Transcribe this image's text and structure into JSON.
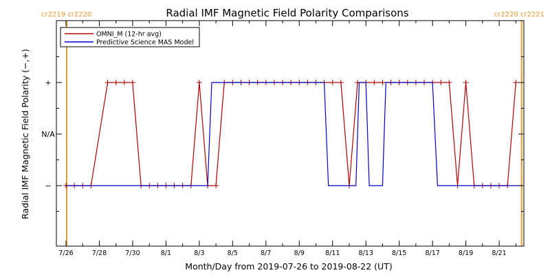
{
  "chart_data": {
    "type": "line",
    "title": "Radial IMF Magnetic Field Polarity Comparisons",
    "xlabel": "Month/Day from 2019-07-26 to 2019-08-22 (UT)",
    "ylabel": "Radial IMF Magnetic Field Polarity (−,+)",
    "y_categories": [
      "−",
      "N/A",
      "+"
    ],
    "ylim": [
      -2,
      2
    ],
    "xlim_days_since_0726": [
      0,
      27.4
    ],
    "x_ticks": [
      {
        "label": "7/26",
        "day": 0
      },
      {
        "label": "7/28",
        "day": 2
      },
      {
        "label": "7/30",
        "day": 4
      },
      {
        "label": "8/1",
        "day": 6
      },
      {
        "label": "8/3",
        "day": 8
      },
      {
        "label": "8/5",
        "day": 10
      },
      {
        "label": "8/7",
        "day": 12
      },
      {
        "label": "8/9",
        "day": 14
      },
      {
        "label": "8/11",
        "day": 16
      },
      {
        "label": "8/13",
        "day": 18
      },
      {
        "label": "8/15",
        "day": 20
      },
      {
        "label": "8/17",
        "day": 22
      },
      {
        "label": "8/19",
        "day": 24
      },
      {
        "label": "8/21",
        "day": 26
      }
    ],
    "carrington_markers": [
      {
        "label": "cr2219 cr2220",
        "day": 0.04,
        "side": "left"
      },
      {
        "label": "cr2220 cr2221",
        "day": 27.35,
        "side": "right"
      }
    ],
    "legend_position": "top-left",
    "series": [
      {
        "name": "OMNI_M (12-hr avg)",
        "color": "#b20000",
        "markers": "plus",
        "points": [
          [
            0.0,
            -1
          ],
          [
            0.5,
            -1
          ],
          [
            1.0,
            -1
          ],
          [
            1.5,
            -1
          ],
          [
            2.5,
            1
          ],
          [
            3.0,
            1
          ],
          [
            3.5,
            1
          ],
          [
            4.0,
            1
          ],
          [
            4.5,
            -1
          ],
          [
            5.0,
            -1
          ],
          [
            5.5,
            -1
          ],
          [
            6.0,
            -1
          ],
          [
            6.5,
            -1
          ],
          [
            7.0,
            -1
          ],
          [
            7.5,
            -1
          ],
          [
            8.0,
            1
          ],
          [
            8.5,
            -1
          ],
          [
            9.0,
            -1
          ],
          [
            9.5,
            1
          ],
          [
            10.0,
            1
          ],
          [
            10.5,
            1
          ],
          [
            11.0,
            1
          ],
          [
            11.5,
            1
          ],
          [
            12.0,
            1
          ],
          [
            12.5,
            1
          ],
          [
            13.0,
            1
          ],
          [
            13.5,
            1
          ],
          [
            14.0,
            1
          ],
          [
            14.5,
            1
          ],
          [
            15.0,
            1
          ],
          [
            15.5,
            1
          ],
          [
            16.0,
            1
          ],
          [
            16.5,
            1
          ],
          [
            17.0,
            -1
          ],
          [
            17.5,
            1
          ],
          [
            18.0,
            1
          ],
          [
            18.5,
            1
          ],
          [
            19.0,
            1
          ],
          [
            19.5,
            1
          ],
          [
            20.0,
            1
          ],
          [
            20.5,
            1
          ],
          [
            21.0,
            1
          ],
          [
            21.5,
            1
          ],
          [
            22.0,
            1
          ],
          [
            22.5,
            1
          ],
          [
            23.0,
            1
          ],
          [
            23.5,
            -1
          ],
          [
            24.0,
            1
          ],
          [
            24.5,
            -1
          ],
          [
            25.0,
            -1
          ],
          [
            25.5,
            -1
          ],
          [
            26.0,
            -1
          ],
          [
            26.5,
            -1
          ],
          [
            27.0,
            1
          ]
        ]
      },
      {
        "name": "Predictive Science MAS Model",
        "color": "#0000cc",
        "markers": "none",
        "points": [
          [
            0.0,
            -1
          ],
          [
            8.5,
            -1
          ],
          [
            8.75,
            1
          ],
          [
            15.5,
            1
          ],
          [
            15.75,
            -1
          ],
          [
            17.4,
            -1
          ],
          [
            17.6,
            1
          ],
          [
            18.0,
            1
          ],
          [
            18.2,
            -1
          ],
          [
            19.0,
            -1
          ],
          [
            19.2,
            1
          ],
          [
            20.0,
            1
          ],
          [
            22.0,
            1
          ],
          [
            22.3,
            -1
          ],
          [
            27.4,
            -1
          ]
        ]
      }
    ]
  }
}
